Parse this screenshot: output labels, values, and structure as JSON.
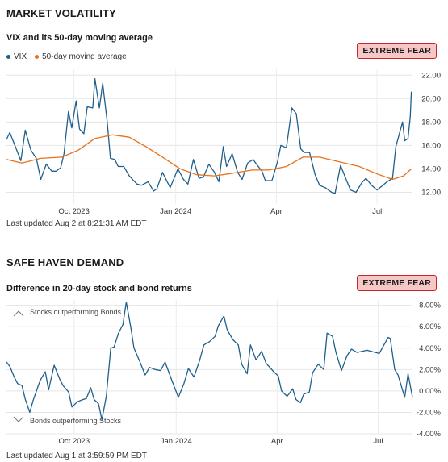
{
  "market_volatility": {
    "title": "MARKET VOLATILITY",
    "subtitle": "VIX and its 50-day moving average",
    "badge": "EXTREME FEAR",
    "legend_vix": "VIX",
    "legend_ma": "50-day moving average",
    "last_updated": "Last updated Aug 2 at 8:21:31 AM EDT"
  },
  "safe_haven": {
    "title": "SAFE HAVEN DEMAND",
    "subtitle": "Difference in 20-day stock and bond returns",
    "badge": "EXTREME FEAR",
    "annotation_top": "Stocks outperforming Bonds",
    "annotation_bottom": "Bonds outperforming Stocks",
    "last_updated": "Last updated Aug 1 at 3:59:59 PM EDT"
  },
  "colors": {
    "vix": "#1f5f8b",
    "ma": "#e8711c",
    "safe": "#1f5f8b",
    "badge_bg": "#f6c7c7",
    "badge_border": "#c62828"
  },
  "chart_data": [
    {
      "type": "line",
      "title": "VIX and its 50-day moving average",
      "x_ticks": [
        "Oct 2023",
        "Jan 2024",
        "Apr",
        "Jul"
      ],
      "x_tick_dates": [
        "2023-10-01",
        "2024-01-01",
        "2024-04-01",
        "2024-07-01"
      ],
      "x_range": [
        "2023-08-01",
        "2024-08-02"
      ],
      "y_ticks": [
        "12.00",
        "14.00",
        "16.00",
        "18.00",
        "20.00",
        "22.00"
      ],
      "ylim": [
        11,
        22.5
      ],
      "legend": "top-left",
      "grid": true,
      "series": [
        {
          "name": "VIX",
          "points": [
            [
              "2023-08-01",
              16.5
            ],
            [
              "2023-08-04",
              17.1
            ],
            [
              "2023-08-09",
              15.9
            ],
            [
              "2023-08-14",
              14.7
            ],
            [
              "2023-08-18",
              17.3
            ],
            [
              "2023-08-23",
              15.6
            ],
            [
              "2023-08-28",
              14.9
            ],
            [
              "2023-09-01",
              13.1
            ],
            [
              "2023-09-06",
              14.4
            ],
            [
              "2023-09-11",
              13.8
            ],
            [
              "2023-09-15",
              13.8
            ],
            [
              "2023-09-19",
              14.1
            ],
            [
              "2023-09-22",
              15.3
            ],
            [
              "2023-09-26",
              18.9
            ],
            [
              "2023-09-29",
              17.5
            ],
            [
              "2023-10-03",
              19.8
            ],
            [
              "2023-10-06",
              17.4
            ],
            [
              "2023-10-10",
              17.0
            ],
            [
              "2023-10-13",
              19.3
            ],
            [
              "2023-10-18",
              19.2
            ],
            [
              "2023-10-20",
              21.7
            ],
            [
              "2023-10-24",
              19.2
            ],
            [
              "2023-10-27",
              21.3
            ],
            [
              "2023-10-31",
              18.1
            ],
            [
              "2023-11-03",
              14.9
            ],
            [
              "2023-11-07",
              14.8
            ],
            [
              "2023-11-10",
              14.2
            ],
            [
              "2023-11-15",
              14.2
            ],
            [
              "2023-11-20",
              13.4
            ],
            [
              "2023-11-27",
              12.7
            ],
            [
              "2023-12-01",
              12.6
            ],
            [
              "2023-12-07",
              12.9
            ],
            [
              "2023-12-12",
              12.1
            ],
            [
              "2023-12-15",
              12.3
            ],
            [
              "2023-12-20",
              13.7
            ],
            [
              "2023-12-27",
              12.4
            ],
            [
              "2024-01-03",
              14.0
            ],
            [
              "2024-01-08",
              13.1
            ],
            [
              "2024-01-12",
              12.7
            ],
            [
              "2024-01-17",
              14.8
            ],
            [
              "2024-01-22",
              13.2
            ],
            [
              "2024-01-26",
              13.3
            ],
            [
              "2024-01-31",
              14.4
            ],
            [
              "2024-02-05",
              13.7
            ],
            [
              "2024-02-09",
              12.9
            ],
            [
              "2024-02-13",
              15.9
            ],
            [
              "2024-02-16",
              14.2
            ],
            [
              "2024-02-21",
              15.3
            ],
            [
              "2024-02-26",
              13.7
            ],
            [
              "2024-03-01",
              13.1
            ],
            [
              "2024-03-06",
              14.5
            ],
            [
              "2024-03-11",
              14.8
            ],
            [
              "2024-03-14",
              14.4
            ],
            [
              "2024-03-19",
              13.8
            ],
            [
              "2024-03-22",
              13.0
            ],
            [
              "2024-03-28",
              13.0
            ],
            [
              "2024-04-02",
              14.6
            ],
            [
              "2024-04-05",
              16.0
            ],
            [
              "2024-04-10",
              15.8
            ],
            [
              "2024-04-15",
              19.2
            ],
            [
              "2024-04-19",
              18.7
            ],
            [
              "2024-04-23",
              15.7
            ],
            [
              "2024-04-26",
              15.4
            ],
            [
              "2024-05-01",
              15.4
            ],
            [
              "2024-05-06",
              13.5
            ],
            [
              "2024-05-10",
              12.6
            ],
            [
              "2024-05-15",
              12.4
            ],
            [
              "2024-05-21",
              12.0
            ],
            [
              "2024-05-24",
              11.9
            ],
            [
              "2024-05-29",
              14.3
            ],
            [
              "2024-06-03",
              13.1
            ],
            [
              "2024-06-07",
              12.2
            ],
            [
              "2024-06-12",
              12.0
            ],
            [
              "2024-06-17",
              12.8
            ],
            [
              "2024-06-21",
              13.2
            ],
            [
              "2024-06-26",
              12.6
            ],
            [
              "2024-07-01",
              12.2
            ],
            [
              "2024-07-05",
              12.5
            ],
            [
              "2024-07-10",
              12.9
            ],
            [
              "2024-07-15",
              13.2
            ],
            [
              "2024-07-18",
              15.9
            ],
            [
              "2024-07-24",
              18.0
            ],
            [
              "2024-07-26",
              16.4
            ],
            [
              "2024-07-29",
              16.6
            ],
            [
              "2024-07-31",
              18.5
            ],
            [
              "2024-08-01",
              20.6
            ]
          ]
        },
        {
          "name": "50-day moving average",
          "points": [
            [
              "2023-08-01",
              14.8
            ],
            [
              "2023-08-15",
              14.5
            ],
            [
              "2023-09-01",
              14.9
            ],
            [
              "2023-09-20",
              15.0
            ],
            [
              "2023-10-05",
              15.6
            ],
            [
              "2023-10-20",
              16.6
            ],
            [
              "2023-11-05",
              16.9
            ],
            [
              "2023-11-20",
              16.7
            ],
            [
              "2023-12-05",
              15.9
            ],
            [
              "2023-12-20",
              15.0
            ],
            [
              "2024-01-05",
              14.0
            ],
            [
              "2024-01-20",
              13.5
            ],
            [
              "2024-02-05",
              13.4
            ],
            [
              "2024-02-20",
              13.6
            ],
            [
              "2024-03-10",
              13.9
            ],
            [
              "2024-03-25",
              13.9
            ],
            [
              "2024-04-10",
              14.2
            ],
            [
              "2024-04-25",
              15.0
            ],
            [
              "2024-05-10",
              15.0
            ],
            [
              "2024-05-28",
              14.6
            ],
            [
              "2024-06-15",
              14.2
            ],
            [
              "2024-06-30",
              13.6
            ],
            [
              "2024-07-15",
              13.1
            ],
            [
              "2024-07-25",
              13.4
            ],
            [
              "2024-08-01",
              14.0
            ]
          ]
        }
      ]
    },
    {
      "type": "line",
      "title": "Difference in 20-day stock and bond returns",
      "x_ticks": [
        "Oct 2023",
        "Jan 2024",
        "Apr",
        "Jul"
      ],
      "x_tick_dates": [
        "2023-10-01",
        "2024-01-01",
        "2024-04-01",
        "2024-07-01"
      ],
      "x_range": [
        "2023-08-01",
        "2024-08-01"
      ],
      "y_ticks": [
        "-4.00%",
        "-2.00%",
        "0.00%",
        "2.00%",
        "4.00%",
        "6.00%",
        "8.00%"
      ],
      "ylim": [
        -4,
        8.5
      ],
      "grid": true,
      "series": [
        {
          "name": "",
          "points": [
            [
              "2023-08-01",
              2.7
            ],
            [
              "2023-08-04",
              2.3
            ],
            [
              "2023-08-08",
              1.3
            ],
            [
              "2023-08-11",
              0.7
            ],
            [
              "2023-08-15",
              0.5
            ],
            [
              "2023-08-18",
              -0.8
            ],
            [
              "2023-08-22",
              -2.0
            ],
            [
              "2023-08-25",
              -0.9
            ],
            [
              "2023-08-30",
              0.6
            ],
            [
              "2023-09-01",
              1.1
            ],
            [
              "2023-09-05",
              1.8
            ],
            [
              "2023-09-08",
              0.1
            ],
            [
              "2023-09-13",
              2.4
            ],
            [
              "2023-09-18",
              1.1
            ],
            [
              "2023-09-21",
              0.5
            ],
            [
              "2023-09-26",
              -0.1
            ],
            [
              "2023-09-29",
              -1.5
            ],
            [
              "2023-10-04",
              -1.0
            ],
            [
              "2023-10-09",
              -0.8
            ],
            [
              "2023-10-12",
              -0.7
            ],
            [
              "2023-10-16",
              0.3
            ],
            [
              "2023-10-19",
              -0.8
            ],
            [
              "2023-10-23",
              -1.2
            ],
            [
              "2023-10-26",
              -2.7
            ],
            [
              "2023-10-30",
              -0.5
            ],
            [
              "2023-11-03",
              4.0
            ],
            [
              "2023-11-06",
              4.1
            ],
            [
              "2023-11-10",
              5.4
            ],
            [
              "2023-11-14",
              6.2
            ],
            [
              "2023-11-17",
              8.3
            ],
            [
              "2023-11-21",
              6.0
            ],
            [
              "2023-11-24",
              4.0
            ],
            [
              "2023-11-29",
              2.8
            ],
            [
              "2023-12-04",
              1.5
            ],
            [
              "2023-12-08",
              2.2
            ],
            [
              "2023-12-13",
              2.0
            ],
            [
              "2023-12-18",
              1.9
            ],
            [
              "2023-12-22",
              2.7
            ],
            [
              "2023-12-28",
              1.0
            ],
            [
              "2024-01-03",
              -0.6
            ],
            [
              "2024-01-08",
              0.7
            ],
            [
              "2024-01-12",
              2.1
            ],
            [
              "2024-01-17",
              1.3
            ],
            [
              "2024-01-22",
              2.8
            ],
            [
              "2024-01-26",
              4.3
            ],
            [
              "2024-01-31",
              4.6
            ],
            [
              "2024-02-05",
              5.1
            ],
            [
              "2024-02-08",
              6.1
            ],
            [
              "2024-02-13",
              7.0
            ],
            [
              "2024-02-16",
              5.7
            ],
            [
              "2024-02-21",
              4.8
            ],
            [
              "2024-02-26",
              4.3
            ],
            [
              "2024-02-29",
              2.5
            ],
            [
              "2024-03-05",
              1.6
            ],
            [
              "2024-03-08",
              4.3
            ],
            [
              "2024-03-13",
              2.9
            ],
            [
              "2024-03-18",
              3.7
            ],
            [
              "2024-03-22",
              2.6
            ],
            [
              "2024-03-28",
              1.9
            ],
            [
              "2024-04-02",
              1.4
            ],
            [
              "2024-04-05",
              0.0
            ],
            [
              "2024-04-10",
              -0.5
            ],
            [
              "2024-04-15",
              0.2
            ],
            [
              "2024-04-18",
              -0.8
            ],
            [
              "2024-04-22",
              -1.1
            ],
            [
              "2024-04-25",
              -0.3
            ],
            [
              "2024-04-30",
              -0.1
            ],
            [
              "2024-05-03",
              1.7
            ],
            [
              "2024-05-08",
              2.5
            ],
            [
              "2024-05-13",
              2.0
            ],
            [
              "2024-05-16",
              5.4
            ],
            [
              "2024-05-21",
              5.1
            ],
            [
              "2024-05-24",
              3.6
            ],
            [
              "2024-05-29",
              1.9
            ],
            [
              "2024-06-03",
              3.3
            ],
            [
              "2024-06-07",
              3.9
            ],
            [
              "2024-06-12",
              3.6
            ],
            [
              "2024-06-21",
              3.8
            ],
            [
              "2024-07-02",
              3.5
            ],
            [
              "2024-07-10",
              5.0
            ],
            [
              "2024-07-12",
              4.9
            ],
            [
              "2024-07-16",
              2.0
            ],
            [
              "2024-07-19",
              1.5
            ],
            [
              "2024-07-23",
              0.1
            ],
            [
              "2024-07-25",
              -0.6
            ],
            [
              "2024-07-28",
              1.6
            ],
            [
              "2024-08-01",
              -0.6
            ]
          ]
        }
      ]
    }
  ]
}
